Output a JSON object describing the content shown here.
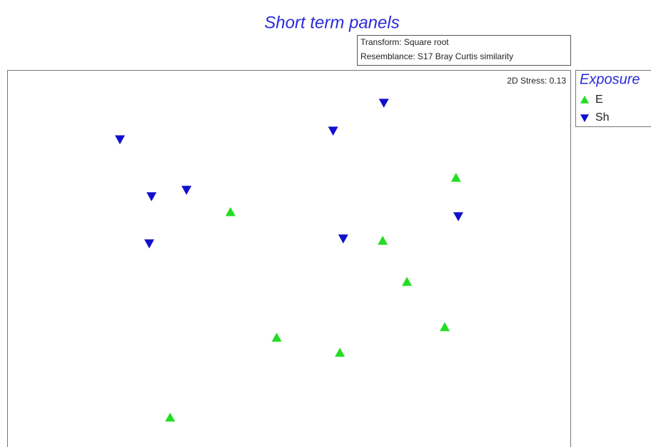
{
  "chart_data": {
    "type": "scatter",
    "title": "Short term panels",
    "annotations": [
      "Transform: Square root",
      "Resemblance: S17 Bray Curtis similarity"
    ],
    "stress": "2D Stress: 0.13",
    "legend_title": "Exposure",
    "legend": "right",
    "xlim": [
      0,
      100
    ],
    "ylim": [
      0,
      100
    ],
    "series": [
      {
        "name": "E",
        "color": "#22dd22",
        "marker": "triangle-up",
        "x": [
          79.6,
          39.6,
          66.6,
          70.9,
          77.6,
          47.8,
          59.0,
          28.9
        ],
        "y": [
          71.4,
          62.3,
          54.7,
          43.8,
          31.8,
          29.0,
          25.0,
          7.8
        ]
      },
      {
        "name": "Sh",
        "color": "#1010cc",
        "marker": "triangle-down",
        "x": [
          66.8,
          20.0,
          57.8,
          25.6,
          31.8,
          80.0,
          25.2,
          59.6
        ],
        "y": [
          91.3,
          81.6,
          83.9,
          66.5,
          68.2,
          61.2,
          54.0,
          55.3
        ]
      }
    ]
  }
}
